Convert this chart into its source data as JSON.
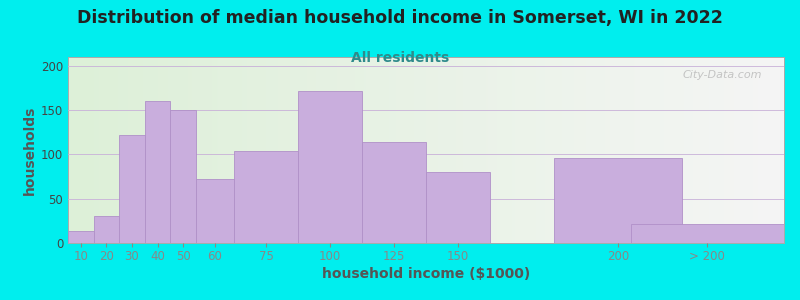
{
  "title": "Distribution of median household income in Somerset, WI in 2022",
  "subtitle": "All residents",
  "xlabel": "household income ($1000)",
  "ylabel": "households",
  "bar_heights": [
    13,
    30,
    122,
    160,
    150,
    72,
    104,
    172,
    114,
    80,
    96,
    21
  ],
  "bar_widths": [
    10,
    10,
    10,
    10,
    10,
    15,
    25,
    25,
    25,
    25,
    50,
    60
  ],
  "bar_lefts": [
    10,
    20,
    30,
    40,
    50,
    60,
    75,
    100,
    125,
    150,
    200,
    230
  ],
  "bar_color": "#c9aedd",
  "bar_edge_color": "#b090c8",
  "background_color": "#00eeee",
  "plot_bg_color_left": "#ddf0d8",
  "plot_bg_color_right": "#f5f5f5",
  "title_fontsize": 12.5,
  "subtitle_fontsize": 10,
  "subtitle_color": "#2e8b8b",
  "ylabel_color": "#555555",
  "xlabel_color": "#555555",
  "ylim": [
    0,
    210
  ],
  "yticks": [
    0,
    50,
    100,
    150,
    200
  ],
  "watermark": "City-Data.com",
  "xtick_labels": [
    "10",
    "20",
    "30",
    "40",
    "50",
    "60",
    "75",
    "100",
    "125",
    "150",
    "200",
    "> 200"
  ],
  "xlim": [
    10,
    290
  ]
}
